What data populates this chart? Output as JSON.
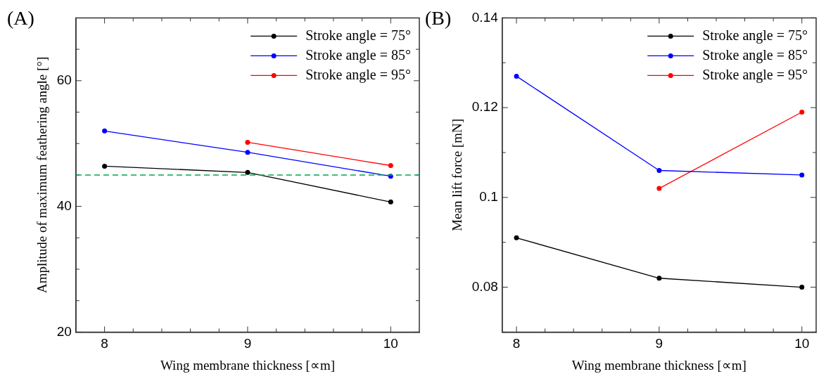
{
  "chart_data": [
    {
      "type": "line",
      "xlabel": "Wing membrane thickness [∝m]",
      "ylabel": "Amplitude of maximum feathering angle [°]",
      "annotations": [
        "(A)"
      ],
      "x": [
        8,
        9,
        10
      ],
      "marker": "circle",
      "line_style": "solid",
      "legend": "top right",
      "grid": false,
      "xlim": [
        7.8,
        10.2
      ],
      "xticks": [
        8,
        {
          "value": 8.2,
          "label": null
        },
        {
          "value": 8.4,
          "label": null
        },
        {
          "value": 8.6,
          "label": null
        },
        {
          "value": 8.8,
          "label": null
        },
        9,
        {
          "value": 9.2,
          "label": null
        },
        {
          "value": 9.4,
          "label": null
        },
        {
          "value": 9.6,
          "label": null
        },
        {
          "value": 9.8,
          "label": null
        },
        10
      ],
      "ylim": [
        20,
        70
      ],
      "yticks": [
        20,
        {
          "value": 25,
          "label": null
        },
        {
          "value": 30,
          "label": null
        },
        {
          "value": 35,
          "label": null
        },
        40,
        {
          "value": 45,
          "label": null
        },
        {
          "value": 50,
          "label": null
        },
        {
          "value": 55,
          "label": null
        },
        60,
        {
          "value": 65,
          "label": null
        }
      ],
      "ref_lines": [
        {
          "axis": "y",
          "value": 45,
          "color": "#00a651",
          "line_style": "dashed"
        }
      ],
      "series": [
        {
          "name": "Stroke angle = 75°",
          "color": "#000000",
          "values": [
            46.4,
            45.4,
            40.7
          ]
        },
        {
          "name": "Stroke angle = 85°",
          "color": "#0000ff",
          "values": [
            52.0,
            48.6,
            44.8
          ]
        },
        {
          "name": "Stroke angle = 95°",
          "color": "#ff0000",
          "values": [
            null,
            50.2,
            46.5
          ]
        }
      ]
    },
    {
      "type": "line",
      "xlabel": "Wing membrane thickness [∝m]",
      "ylabel": "Mean lift force [mN]",
      "annotations": [
        "(B)"
      ],
      "x": [
        8,
        9,
        10
      ],
      "marker": "circle",
      "line_style": "solid",
      "legend": "top right",
      "grid": false,
      "xlim": [
        7.9,
        10.1
      ],
      "xticks": [
        8,
        {
          "value": 8.2,
          "label": null
        },
        {
          "value": 8.4,
          "label": null
        },
        {
          "value": 8.6,
          "label": null
        },
        {
          "value": 8.8,
          "label": null
        },
        9,
        {
          "value": 9.2,
          "label": null
        },
        {
          "value": 9.4,
          "label": null
        },
        {
          "value": 9.6,
          "label": null
        },
        {
          "value": 9.8,
          "label": null
        },
        10
      ],
      "ylim": [
        0.07,
        0.14
      ],
      "yticks": [
        {
          "value": 0.07,
          "label": null
        },
        0.08,
        {
          "value": 0.09,
          "label": null
        },
        0.1,
        {
          "value": 0.11,
          "label": null
        },
        0.12,
        {
          "value": 0.13,
          "label": null
        },
        0.14
      ],
      "series": [
        {
          "name": "Stroke angle = 75°",
          "color": "#000000",
          "values": [
            0.091,
            0.082,
            0.08
          ]
        },
        {
          "name": "Stroke angle = 85°",
          "color": "#0000ff",
          "values": [
            0.127,
            0.106,
            0.105
          ]
        },
        {
          "name": "Stroke angle = 95°",
          "color": "#ff0000",
          "values": [
            null,
            0.102,
            0.119
          ]
        }
      ]
    }
  ]
}
